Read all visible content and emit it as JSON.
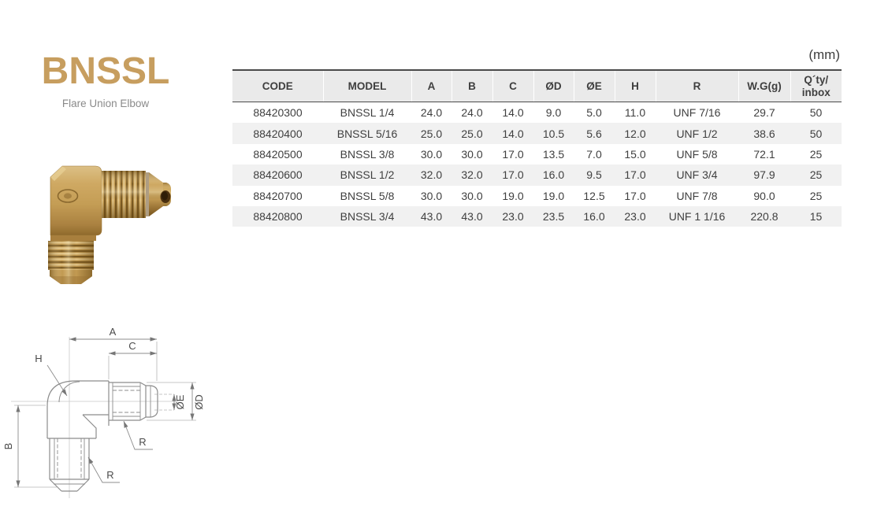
{
  "theme": {
    "accent": "#C79E5F",
    "table_header_bg": "#EAEAEA",
    "row_alt_bg": "#F1F1F1",
    "table_line": "#4A4A4A",
    "text": "#3F3F3F",
    "brass_light": "#E7CB90",
    "brass_mid": "#C49D55",
    "brass_dark": "#7D5C24",
    "drawing_line": "#8C8C8C"
  },
  "brand": {
    "title": "BNSSL",
    "subtitle": "Flare Union Elbow"
  },
  "unit_label": "(mm)",
  "table": {
    "columns": [
      "CODE",
      "MODEL",
      "A",
      "B",
      "C",
      "ØD",
      "ØE",
      "H",
      "R",
      "W.G(g)",
      "Q´ty/\ninbox"
    ],
    "rows": [
      [
        "88420300",
        "BNSSL 1/4",
        "24.0",
        "24.0",
        "14.0",
        "9.0",
        "5.0",
        "11.0",
        "UNF 7/16",
        "29.7",
        "50"
      ],
      [
        "88420400",
        "BNSSL 5/16",
        "25.0",
        "25.0",
        "14.0",
        "10.5",
        "5.6",
        "12.0",
        "UNF 1/2",
        "38.6",
        "50"
      ],
      [
        "88420500",
        "BNSSL 3/8",
        "30.0",
        "30.0",
        "17.0",
        "13.5",
        "7.0",
        "15.0",
        "UNF 5/8",
        "72.1",
        "25"
      ],
      [
        "88420600",
        "BNSSL 1/2",
        "32.0",
        "32.0",
        "17.0",
        "16.0",
        "9.5",
        "17.0",
        "UNF 3/4",
        "97.9",
        "25"
      ],
      [
        "88420700",
        "BNSSL 5/8",
        "30.0",
        "30.0",
        "19.0",
        "19.0",
        "12.5",
        "17.0",
        "UNF 7/8",
        "90.0",
        "25"
      ],
      [
        "88420800",
        "BNSSL 3/4",
        "43.0",
        "43.0",
        "23.0",
        "23.5",
        "16.0",
        "23.0",
        "UNF 1 1/16",
        "220.8",
        "15"
      ]
    ]
  },
  "drawing": {
    "dim_a": "A",
    "dim_b": "B",
    "dim_c": "C",
    "dim_h": "H",
    "dim_r_top": "R",
    "dim_r_bottom": "R",
    "dim_oe": "ØE",
    "dim_od": "ØD"
  }
}
